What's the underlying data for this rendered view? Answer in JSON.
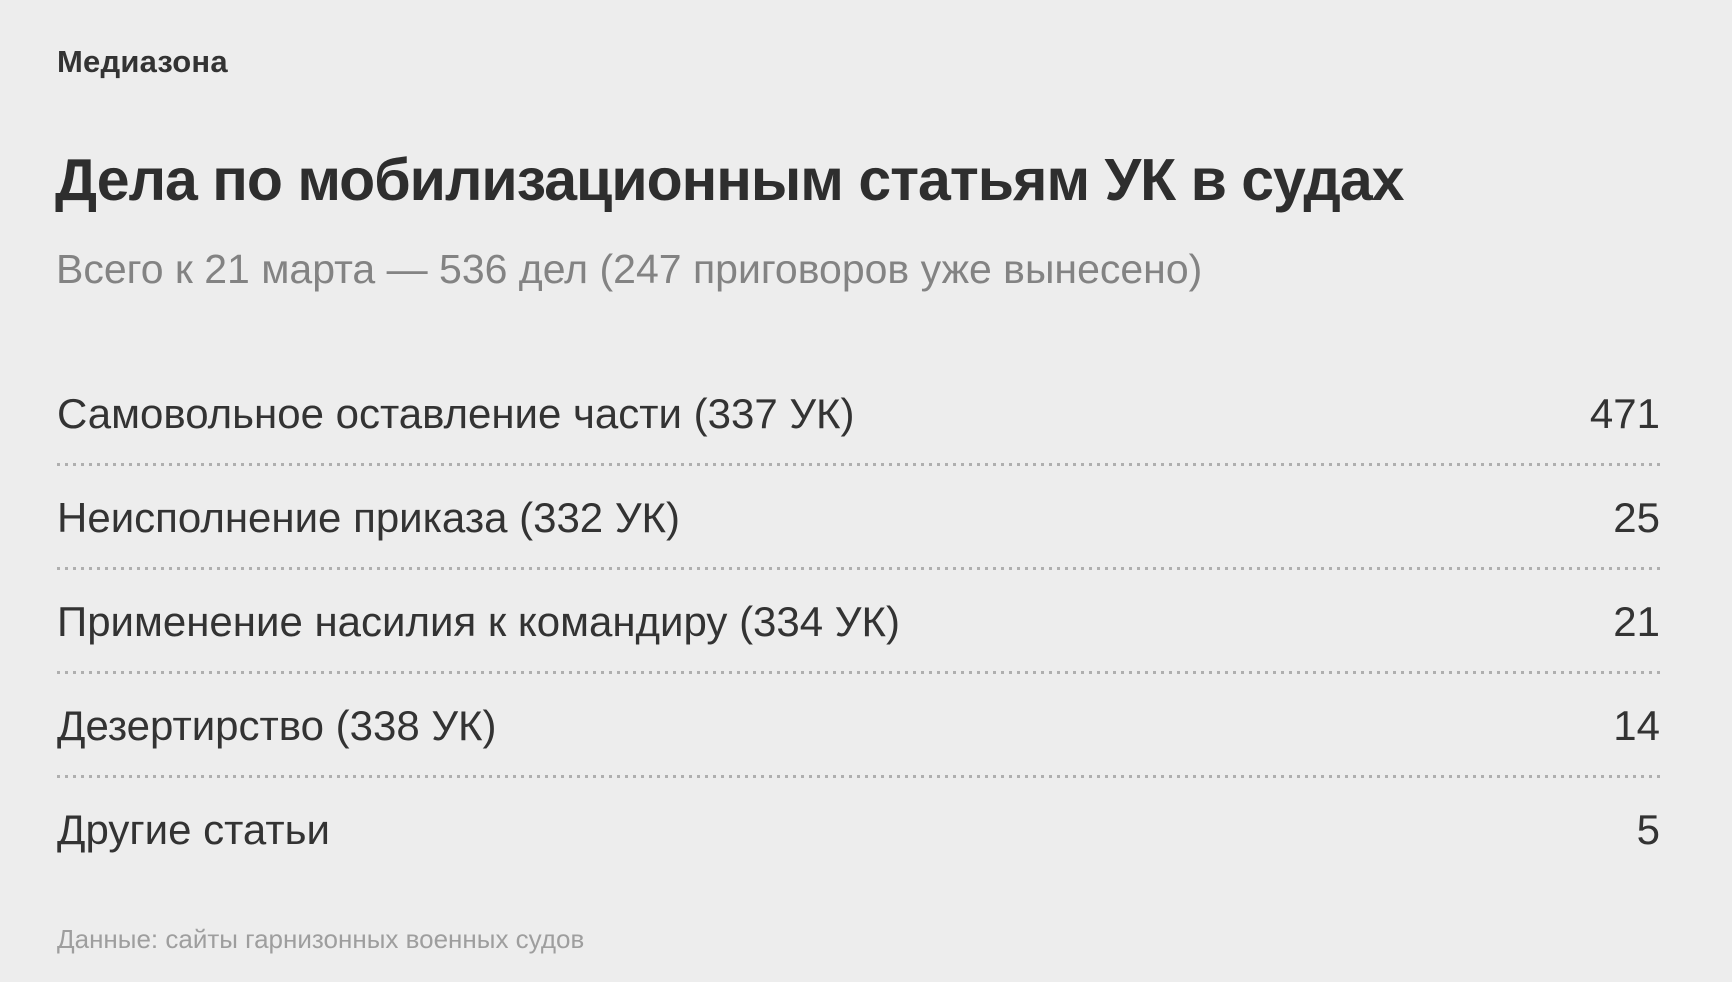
{
  "header": {
    "logo": "Медиазона",
    "title": "Дела по мобилизационным статьям УК в судах",
    "subtitle": "Всего к 21 марта — 536 дел (247 приговоров уже вынесено)"
  },
  "table": {
    "rows": [
      {
        "label": "Самовольное оставление части (337 УК)",
        "value": "471"
      },
      {
        "label": "Неисполнение приказа (332 УК)",
        "value": "25"
      },
      {
        "label": "Применение насилия к командиру (334 УК)",
        "value": "21"
      },
      {
        "label": "Дезертирство (338 УК)",
        "value": "14"
      },
      {
        "label": "Другие статьи",
        "value": "5"
      }
    ]
  },
  "footer": {
    "source": "Данные: сайты гарнизонных военных судов"
  },
  "colors": {
    "background": "#ededed",
    "text_dark": "#333333",
    "text_subtitle": "#838383",
    "text_source": "#9e9e9e",
    "separator_dots": "#afafaf"
  },
  "chart_data": {
    "type": "table",
    "title": "Дела по мобилизационным статьям УК в судах",
    "subtitle": "Всего к 21 марта — 536 дел (247 приговоров уже вынесено)",
    "categories": [
      "Самовольное оставление части (337 УК)",
      "Неисполнение приказа (332 УК)",
      "Применение насилия к командиру (334 УК)",
      "Дезертирство (338 УК)",
      "Другие статьи"
    ],
    "values": [
      471,
      25,
      21,
      14,
      5
    ],
    "total_cases": 536,
    "verdicts_delivered": 247,
    "source": "Данные: сайты гарнизонных военных судов",
    "legend_position": "none",
    "grid": "dotted-row-separators"
  }
}
